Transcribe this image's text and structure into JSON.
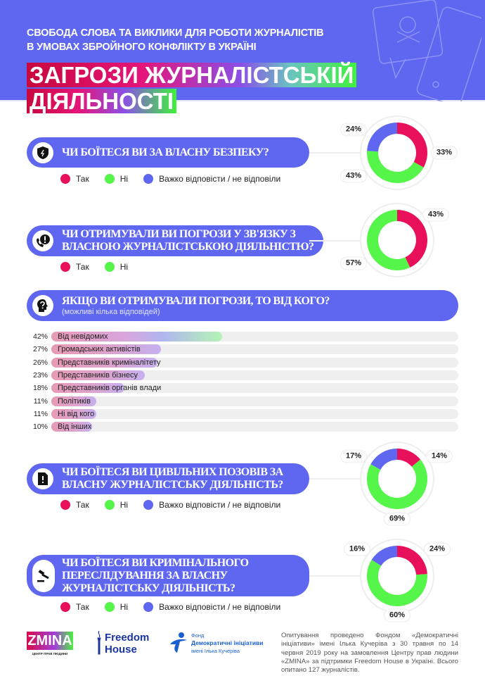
{
  "header": {
    "subtitle_line1": "СВОБОДА СЛОВА ТА ВИКЛИКИ ДЛЯ РОБОТИ ЖУРНАЛІСТІВ",
    "subtitle_line2": "В УМОВАХ ЗБРОЙНОГО КОНФЛІКТУ В УКРАЇНІ",
    "title_line1": "ЗАГРОЗИ ЖУРНАЛІСТСЬКІЙ",
    "title_line2": "ДІЯЛЬНОСТІ",
    "background": "#5f66f0",
    "illustration": "phone-skull-message-icon"
  },
  "colors": {
    "yes": "#e8105a",
    "no": "#55f54a",
    "hard": "#5f66f0"
  },
  "legend": {
    "yes": "Так",
    "no": "Ні",
    "hard": "Важко відповісти / не відповіли"
  },
  "questions": [
    {
      "icon": "shield-icon",
      "line1": "ЧИ БОЇТЕСЯ ВИ ЗА ВЛАСНУ БЕЗПЕКУ?"
    },
    {
      "icon": "phone-alert-icon",
      "line1": "ЧИ ОТРИМУВАЛИ ВИ ПОГРОЗИ У ЗВ'ЯЗКУ З",
      "line2": "ВЛАСНОЮ ЖУРНАЛІСТСЬКОЮ ДІЯЛЬНІСТЮ?"
    },
    {
      "icon": "head-question-icon",
      "line1": "ЯКЩО ВИ ОТРИМУВАЛИ ПОГРОЗИ, ТО ВІД КОГО?",
      "note": "(можливі кілька відповідей)"
    },
    {
      "icon": "document-alert-icon",
      "line1": "ЧИ БОЇТЕСЯ ВИ ЦИВІЛЬНИХ ПОЗОВІВ ЗА",
      "line2": "ВЛАСНУ ЖУРНАЛІСТСЬКУ ДІЯЛЬНІСТЬ?"
    },
    {
      "icon": "gavel-icon",
      "line1": "ЧИ БОЇТЕСЯ ВИ КРИМІНАЛЬНОГО",
      "line2": "ПЕРЕСЛІДУВАННЯ ЗА ВЛАСНУ",
      "line3": "ЖУРНАЛІСТСЬКУ ДІЯЛЬНІСТЬ?"
    }
  ],
  "chart_data": [
    {
      "type": "pie",
      "donut": true,
      "categories": [
        "Так",
        "Ні",
        "Важко відповісти / не відповіли"
      ],
      "values": [
        33,
        43,
        24
      ],
      "labels": [
        "33%",
        "43%",
        "24%"
      ]
    },
    {
      "type": "pie",
      "donut": true,
      "categories": [
        "Так",
        "Ні"
      ],
      "values": [
        43,
        57
      ],
      "labels": [
        "43%",
        "57%"
      ]
    },
    {
      "type": "bar",
      "orientation": "horizontal",
      "categories": [
        "Від невідомих",
        "Громадських активістів",
        "Представників криміналітету",
        "Представників бізнесу",
        "Представників органів влади",
        "Політиків",
        "Ні від кого",
        "Від інших"
      ],
      "values": [
        42,
        27,
        26,
        23,
        18,
        11,
        11,
        10
      ],
      "labels": [
        "42%",
        "27%",
        "26%",
        "23%",
        "18%",
        "11%",
        "11%",
        "10%"
      ],
      "xlim": [
        0,
        100
      ]
    },
    {
      "type": "pie",
      "donut": true,
      "categories": [
        "Так",
        "Ні",
        "Важко відповісти / не відповіли"
      ],
      "values": [
        14,
        69,
        17
      ],
      "labels": [
        "14%",
        "69%",
        "17%"
      ]
    },
    {
      "type": "pie",
      "donut": true,
      "categories": [
        "Так",
        "Ні",
        "Важко відповісти / не відповіли"
      ],
      "values": [
        24,
        60,
        16
      ],
      "labels": [
        "24%",
        "60%",
        "16%"
      ]
    }
  ],
  "footer": {
    "logos": {
      "zmina": "ZMINA",
      "zmina_sub": "ЦЕНТР ПРАВ ЛЮДИНИ",
      "fh1": "Freedom",
      "fh2": "House",
      "di1": "Фонд",
      "di2": "Демократичні ініціативи",
      "di3": "імені Ілька Кучеріва"
    },
    "note": "Опитування проведено Фондом «Демократичні ініціативи» імені Ілька Кучеріва з 30 травня по 14 червня 2019 року на замовлення Центру прав людини «ZMINA» за підтримки Freedom House в Україні. Всього опитано 127 журналістів."
  }
}
